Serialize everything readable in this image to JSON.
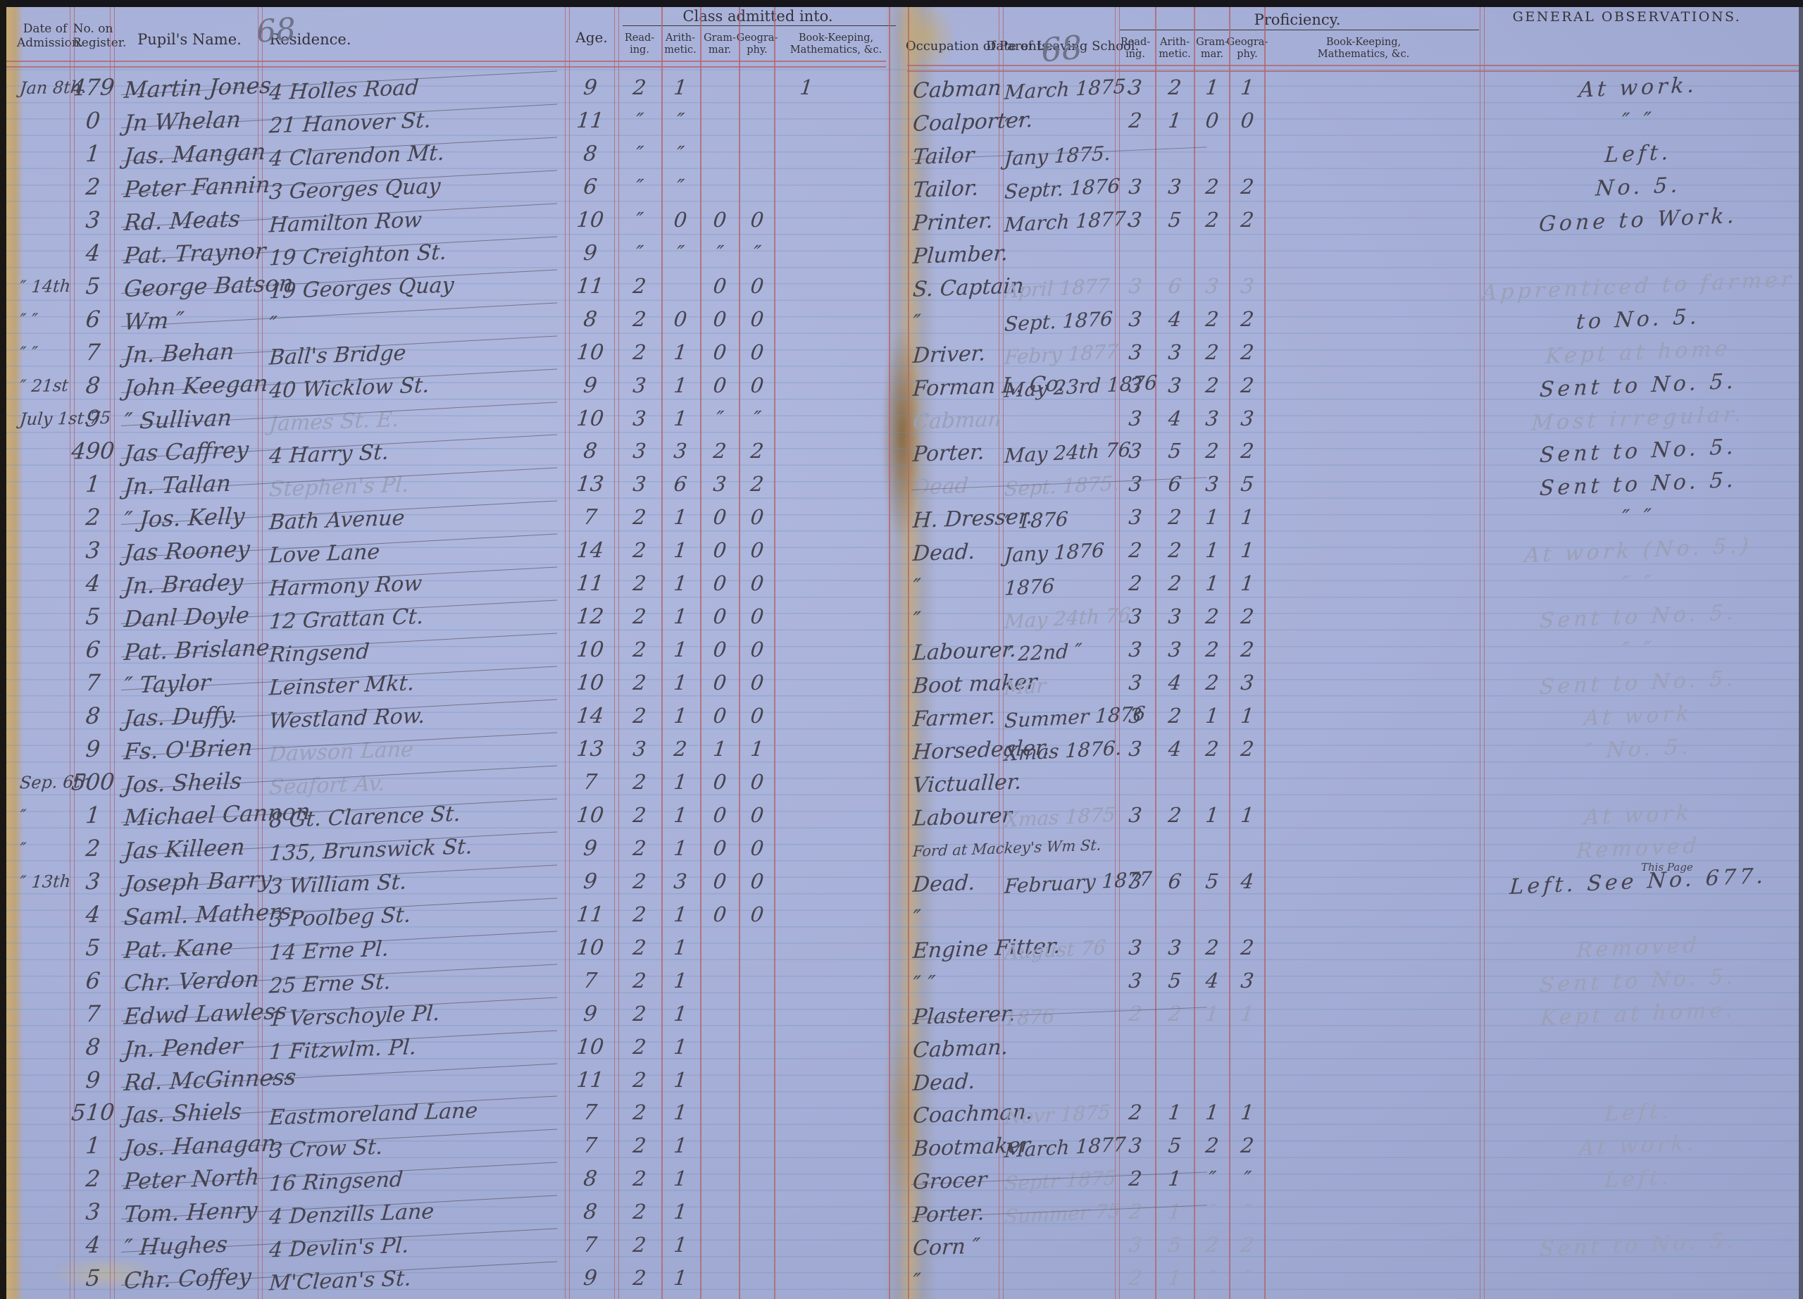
{
  "document": "School admission register ledger, two-page spread",
  "palette": {
    "paper": "#a7b0d8",
    "rule_red": "#b26770",
    "rule_blue": "#6a8fba",
    "ink": "#45434f",
    "pencil": "#9aa0b8",
    "gutter_tan": "#c2a87c"
  },
  "headers": {
    "left": {
      "date_admission": "Date of\nAdmission.",
      "register": "No. on\nRegister.",
      "pupil": "Pupil's Name.",
      "residence": "Residence.",
      "age": "Age.",
      "class_admitted": "Class admitted into.",
      "folio": "68"
    },
    "right": {
      "occupation": "Occupation of Parents.",
      "leaving": "Date of Leaving School.",
      "proficiency": "Proficiency.",
      "observations": "GENERAL OBSERVATIONS.",
      "folio": "68"
    },
    "subjects": {
      "reading": "Read-\ning.",
      "arithmetic": "Arith-\nmetic.",
      "grammar": "Gram-\nmar.",
      "geography": "Geogra-\nphy.",
      "bookkeeping": "Book-Keeping,\nMathematics, &c."
    }
  },
  "rows": [
    {
      "adm": "Jan 8th.",
      "reg": "479",
      "name": "Martin Jones",
      "res": "4 Holles Road",
      "age": "9",
      "cls": [
        "2",
        "1",
        "",
        "",
        "1"
      ],
      "occ": "Cabman",
      "leaving": "March 1875.",
      "prof": [
        "3",
        "2",
        "1",
        "1"
      ],
      "obs": "At work."
    },
    {
      "adm": "",
      "reg": "0",
      "name": "Jn Whelan",
      "res": "21 Hanover St.",
      "age": "11",
      "cls": [
        "″",
        "″",
        "",
        ""
      ],
      "occ": "Coalporter.",
      "leaving": "″      ″",
      "prof": [
        "2",
        "1",
        "0",
        "0"
      ],
      "obs": "″      ″"
    },
    {
      "adm": "",
      "reg": "1",
      "name": "Jas. Mangan",
      "res": "4 Clarendon Mt.",
      "age": "8",
      "cls": [
        "″",
        "″",
        "",
        ""
      ],
      "occ": "Tailor",
      "leaving": "Jany 1875.",
      "prof": [],
      "obs": "Left.",
      "occ_struck": true
    },
    {
      "adm": "",
      "reg": "2",
      "name": "Peter Fannin",
      "res": "3 Georges Quay",
      "age": "6",
      "cls": [
        "″",
        "″",
        "",
        ""
      ],
      "occ": "Tailor.",
      "leaving": "Septr. 1876",
      "prof": [
        "3",
        "3",
        "2",
        "2"
      ],
      "obs": "No. 5."
    },
    {
      "adm": "",
      "reg": "3",
      "name": "Rd. Meats",
      "res": "Hamilton Row",
      "age": "10",
      "cls": [
        "″",
        "0",
        "0",
        "0"
      ],
      "occ": "Printer.",
      "leaving": "March 1877.",
      "prof": [
        "3",
        "5",
        "2",
        "2"
      ],
      "obs": "Gone to Work."
    },
    {
      "adm": "",
      "reg": "4",
      "name": "Pat. Traynor",
      "res": "19 Creighton St.",
      "age": "9",
      "cls": [
        "″",
        "″",
        "″",
        "″"
      ],
      "occ": "Plumber.",
      "leaving": "",
      "prof": [],
      "obs": ""
    },
    {
      "adm": "″ 14th",
      "reg": "5",
      "name": "George Batson",
      "res": "19 Georges Quay",
      "age": "11",
      "cls": [
        "2",
        "",
        "0",
        "0"
      ],
      "occ": "S. Captain",
      "leaving": "April 1877",
      "prof": [
        "3",
        "6",
        "3",
        "3"
      ],
      "obs": "Apprenticed to farmer",
      "faint": [
        "leaving",
        "prof",
        "obs"
      ]
    },
    {
      "adm": "″  ″",
      "reg": "6",
      "name": "Wm  ″",
      "res": "″",
      "age": "8",
      "cls": [
        "2",
        "0",
        "0",
        "0"
      ],
      "occ": "″",
      "leaving": "Sept. 1876",
      "prof": [
        "3",
        "4",
        "2",
        "2"
      ],
      "obs": "to No. 5."
    },
    {
      "adm": "″  ″",
      "reg": "7",
      "name": "Jn. Behan",
      "res": "Ball's Bridge",
      "age": "10",
      "cls": [
        "2",
        "1",
        "0",
        "0"
      ],
      "occ": "Driver.",
      "leaving": "Febry 1877",
      "prof": [
        "3",
        "3",
        "2",
        "2"
      ],
      "obs": "Kept at home",
      "faint": [
        "leaving",
        "obs"
      ]
    },
    {
      "adm": "″ 21st",
      "reg": "8",
      "name": "John Keegan",
      "res": "40 Wicklow St.",
      "age": "9",
      "cls": [
        "3",
        "1",
        "0",
        "0"
      ],
      "occ": "Forman L. Co.",
      "leaving": "May 23rd 1876",
      "prof": [
        "3",
        "3",
        "2",
        "2"
      ],
      "obs": "Sent to No. 5."
    },
    {
      "adm": "July 1st.75",
      "reg": "9",
      "name": "″ Sullivan",
      "res": "James St. E.",
      "age": "10",
      "cls": [
        "3",
        "1",
        "″",
        "″"
      ],
      "occ": "Cabman",
      "leaving": "",
      "prof": [
        "3",
        "4",
        "3",
        "3"
      ],
      "obs": "Most irregular.",
      "faint": [
        "res",
        "occ",
        "obs"
      ]
    },
    {
      "adm": "",
      "reg": "490",
      "name": "Jas Caffrey",
      "res": "4 Harry St.",
      "age": "8",
      "cls": [
        "3",
        "3",
        "2",
        "2"
      ],
      "occ": "Porter.",
      "leaving": "May 24th 76",
      "prof": [
        "3",
        "5",
        "2",
        "2"
      ],
      "obs": "Sent to No. 5."
    },
    {
      "adm": "",
      "reg": "1",
      "name": "Jn. Tallan",
      "res": "Stephen's Pl.",
      "age": "13",
      "cls": [
        "3",
        "6",
        "3",
        "2"
      ],
      "occ": "Dead",
      "leaving": "Sept. 1875.",
      "prof": [
        "3",
        "6",
        "3",
        "5"
      ],
      "obs": "Sent to No. 5.",
      "faint": [
        "res",
        "occ",
        "leaving"
      ],
      "occ_struck": true
    },
    {
      "adm": "",
      "reg": "2",
      "name": "″ Jos. Kelly",
      "res": "Bath Avenue",
      "age": "7",
      "cls": [
        "2",
        "1",
        "0",
        "0"
      ],
      "occ": "H. Dresser.",
      "leaving": "″   1876",
      "prof": [
        "3",
        "2",
        "1",
        "1"
      ],
      "obs": "″      ″"
    },
    {
      "adm": "",
      "reg": "3",
      "name": "Jas Rooney",
      "res": "Love Lane",
      "age": "14",
      "cls": [
        "2",
        "1",
        "0",
        "0"
      ],
      "occ": "Dead.",
      "leaving": "Jany 1876",
      "prof": [
        "2",
        "2",
        "1",
        "1"
      ],
      "obs": "At work (No. 5.)",
      "faint": [
        "obs"
      ]
    },
    {
      "adm": "",
      "reg": "4",
      "name": "Jn. Bradey",
      "res": "Harmony Row",
      "age": "11",
      "cls": [
        "2",
        "1",
        "0",
        "0"
      ],
      "occ": "″",
      "leaving": "1876",
      "prof": [
        "2",
        "2",
        "1",
        "1"
      ],
      "obs": "″      ″",
      "faint": [
        "obs"
      ]
    },
    {
      "adm": "",
      "reg": "5",
      "name": "Danl Doyle",
      "res": "12 Grattan Ct.",
      "age": "12",
      "cls": [
        "2",
        "1",
        "0",
        "0"
      ],
      "occ": "″",
      "leaving": "May 24th 76",
      "prof": [
        "3",
        "3",
        "2",
        "2"
      ],
      "obs": "Sent to No. 5.",
      "faint": [
        "leaving",
        "obs"
      ]
    },
    {
      "adm": "",
      "reg": "6",
      "name": "Pat. Brislane",
      "res": "Ringsend",
      "age": "10",
      "cls": [
        "2",
        "1",
        "0",
        "0"
      ],
      "occ": "Labourer.",
      "leaving": "″  22nd  ″",
      "prof": [
        "3",
        "3",
        "2",
        "2"
      ],
      "obs": "″      ″",
      "faint": [
        "obs"
      ]
    },
    {
      "adm": "",
      "reg": "7",
      "name": "″ Taylor",
      "res": "Leinster Mkt.",
      "age": "10",
      "cls": [
        "2",
        "1",
        "0",
        "0"
      ],
      "occ": "Boot maker",
      "leaving": "Mar",
      "prof": [
        "3",
        "4",
        "2",
        "3"
      ],
      "obs": "Sent to No. 5.",
      "faint": [
        "leaving",
        "obs"
      ]
    },
    {
      "adm": "",
      "reg": "8",
      "name": "Jas. Duffy.",
      "res": "Westland Row.",
      "age": "14",
      "cls": [
        "2",
        "1",
        "0",
        "0"
      ],
      "occ": "Farmer.",
      "leaving": "Summer 1876",
      "prof": [
        "3",
        "2",
        "1",
        "1"
      ],
      "obs": "At work",
      "faint": [
        "obs"
      ]
    },
    {
      "adm": "",
      "reg": "9",
      "name": "Fs. O'Brien",
      "res": "Dawson Lane",
      "age": "13",
      "cls": [
        "3",
        "2",
        "1",
        "1"
      ],
      "occ": "Horsedealer.",
      "leaving": "Xmas 1876.",
      "prof": [
        "3",
        "4",
        "2",
        "2"
      ],
      "obs": "″  No. 5.",
      "faint": [
        "res",
        "obs"
      ]
    },
    {
      "adm": "Sep. 6th",
      "reg": "500",
      "name": "Jos. Sheils",
      "res": "Seafort Av.",
      "age": "7",
      "cls": [
        "2",
        "1",
        "0",
        "0"
      ],
      "occ": "Victualler.",
      "leaving": "",
      "prof": [],
      "obs": "",
      "faint": [
        "res"
      ]
    },
    {
      "adm": "″",
      "reg": "1",
      "name": "Michael Cannon",
      "res": "8 Gt. Clarence St.",
      "age": "10",
      "cls": [
        "2",
        "1",
        "0",
        "0"
      ],
      "occ": "Labourer",
      "leaving": "Xmas 1875",
      "prof": [
        "3",
        "2",
        "1",
        "1"
      ],
      "obs": "At work",
      "faint": [
        "leaving",
        "obs"
      ]
    },
    {
      "adm": "″",
      "reg": "2",
      "name": "Jas Killeen",
      "res": "135, Brunswick St.",
      "age": "9",
      "cls": [
        "2",
        "1",
        "0",
        "0"
      ],
      "occ": "Ford at Mackey's Wm St.",
      "leaving": "",
      "prof": [],
      "obs": "Removed",
      "faint": [
        "obs"
      ],
      "occ_small": true
    },
    {
      "adm": "″ 13th",
      "reg": "3",
      "name": "Joseph Barry",
      "res": "3 William St.",
      "age": "9",
      "cls": [
        "2",
        "3",
        "0",
        "0"
      ],
      "occ": "Dead.",
      "leaving": "February 1877",
      "prof": [
        "3",
        "6",
        "5",
        "4"
      ],
      "obs": "Left. See No. 677.",
      "obs_note": "This Page"
    },
    {
      "adm": "",
      "reg": "4",
      "name": "Saml. Mathers.",
      "res": "3 Poolbeg St.",
      "age": "11",
      "cls": [
        "2",
        "1",
        "0",
        "0"
      ],
      "occ": "″",
      "leaving": "",
      "prof": [],
      "obs": ""
    },
    {
      "adm": "",
      "reg": "5",
      "name": "Pat. Kane",
      "res": "14 Erne Pl.",
      "age": "10",
      "cls": [
        "2",
        "1",
        "",
        ""
      ],
      "occ": "Engine Fitter.",
      "leaving": "August 76",
      "prof": [
        "3",
        "3",
        "2",
        "2"
      ],
      "obs": "Removed",
      "faint": [
        "leaving",
        "obs"
      ]
    },
    {
      "adm": "",
      "reg": "6",
      "name": "Chr. Verdon",
      "res": "25 Erne St.",
      "age": "7",
      "cls": [
        "2",
        "1",
        "",
        ""
      ],
      "occ": "″    ″",
      "leaving": "",
      "prof": [
        "3",
        "5",
        "4",
        "3"
      ],
      "obs": "Sent to No. 5.",
      "faint": [
        "obs"
      ]
    },
    {
      "adm": "",
      "reg": "7",
      "name": "Edwd Lawless",
      "res": "1 Verschoyle Pl.",
      "age": "9",
      "cls": [
        "2",
        "1",
        "",
        ""
      ],
      "occ": "Plasterer.",
      "leaving": "1876",
      "prof": [
        "2",
        "2",
        "1",
        "1"
      ],
      "obs": "Kept at home.",
      "faint": [
        "leaving",
        "prof",
        "obs"
      ],
      "occ_struck": true
    },
    {
      "adm": "",
      "reg": "8",
      "name": "Jn. Pender",
      "res": "1 Fitzwlm. Pl.",
      "age": "10",
      "cls": [
        "2",
        "1",
        "",
        ""
      ],
      "occ": "Cabman.",
      "leaving": "",
      "prof": [],
      "obs": ""
    },
    {
      "adm": "",
      "reg": "9",
      "name": "Rd. McGinness",
      "res": "″        ″",
      "age": "11",
      "cls": [
        "2",
        "1",
        "",
        ""
      ],
      "occ": "Dead.",
      "leaving": "",
      "prof": [],
      "obs": ""
    },
    {
      "adm": "",
      "reg": "510",
      "name": "Jas. Shiels",
      "res": "Eastmoreland Lane",
      "age": "7",
      "cls": [
        "2",
        "1",
        "",
        ""
      ],
      "occ": "Coachman.",
      "leaving": "Novr 1875",
      "prof": [
        "2",
        "1",
        "1",
        "1"
      ],
      "obs": "Left.",
      "faint": [
        "leaving",
        "obs"
      ]
    },
    {
      "adm": "",
      "reg": "1",
      "name": "Jos. Hanagan",
      "res": "3 Crow St.",
      "age": "7",
      "cls": [
        "2",
        "1",
        "",
        ""
      ],
      "occ": "Bootmaker",
      "leaving": "March 1877",
      "prof": [
        "3",
        "5",
        "2",
        "2"
      ],
      "obs": "At work.",
      "faint": [
        "obs"
      ]
    },
    {
      "adm": "",
      "reg": "2",
      "name": "Peter North",
      "res": "16 Ringsend",
      "age": "8",
      "cls": [
        "2",
        "1",
        "",
        ""
      ],
      "occ": "Grocer",
      "leaving": "Septr 1875",
      "prof": [
        "2",
        "1",
        "″",
        "″"
      ],
      "obs": "Left.",
      "faint": [
        "leaving",
        "obs"
      ],
      "occ_struck": true
    },
    {
      "adm": "",
      "reg": "3",
      "name": "Tom. Henry",
      "res": "4 Denzills Lane",
      "age": "8",
      "cls": [
        "2",
        "1",
        "",
        ""
      ],
      "occ": "Porter.",
      "leaving": "Summer 75",
      "prof": [
        "2",
        "1",
        "″",
        "″"
      ],
      "obs": "",
      "faint": [
        "leaving",
        "prof"
      ],
      "occ_struck": true
    },
    {
      "adm": "",
      "reg": "4",
      "name": "″ Hughes",
      "res": "4 Devlin's Pl.",
      "age": "7",
      "cls": [
        "2",
        "1",
        "",
        ""
      ],
      "occ": "Corn ″",
      "leaving": "",
      "prof": [
        "3",
        "5",
        "2",
        "2"
      ],
      "obs": "Sent to No. 5.",
      "faint": [
        "prof",
        "obs"
      ]
    },
    {
      "adm": "",
      "reg": "5",
      "name": "Chr. Coffey",
      "res": "M'Clean's St.",
      "age": "9",
      "cls": [
        "2",
        "1",
        "",
        ""
      ],
      "occ": "″",
      "leaving": "",
      "prof": [
        "2",
        "1",
        "″",
        "″"
      ],
      "obs": "",
      "faint": [
        "prof"
      ]
    }
  ]
}
